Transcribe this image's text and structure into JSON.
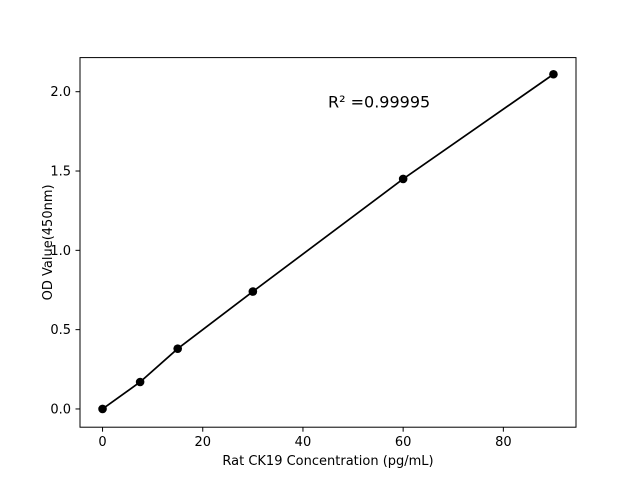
{
  "figure": {
    "background": "#ffffff",
    "foreground": "#000000"
  },
  "chart_data": {
    "type": "line",
    "title": "",
    "xlabel": "Rat CK19 Concentration (pg/mL)",
    "ylabel": "OD Value(450nm)",
    "x": [
      0,
      7.5,
      15,
      30,
      60,
      90
    ],
    "y": [
      0.0,
      0.17,
      0.38,
      0.74,
      1.45,
      2.11
    ],
    "xlim": [
      -4.5,
      94.5
    ],
    "ylim": [
      -0.115,
      2.215
    ],
    "xticks": [
      0,
      20,
      40,
      60,
      80
    ],
    "xtick_labels": [
      "0",
      "20",
      "40",
      "60",
      "80"
    ],
    "yticks": [
      0.0,
      0.5,
      1.0,
      1.5,
      2.0
    ],
    "ytick_labels": [
      "0.0",
      "0.5",
      "1.0",
      "1.5",
      "2.0"
    ],
    "grid": false,
    "legend": "none",
    "line_color": "#000000",
    "marker": "circle",
    "marker_color": "#000000",
    "annotation": {
      "text": "R² =0.99995",
      "x": 45,
      "y": 1.9
    }
  }
}
